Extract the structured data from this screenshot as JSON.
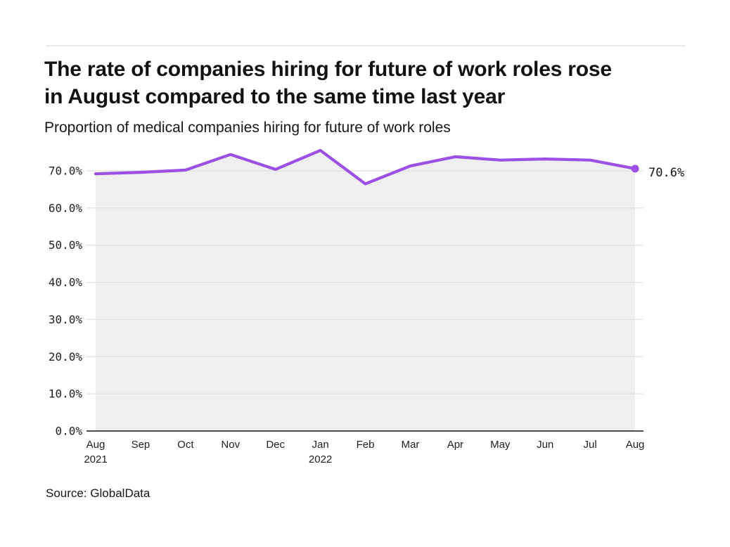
{
  "page": {
    "title_line1": "The rate of companies hiring for future of work roles rose",
    "title_line2": "in August compared to the same time last year",
    "subtitle": "Proportion of medical companies hiring for future of work roles",
    "source": "Source: GlobalData"
  },
  "chart_data": {
    "type": "line",
    "title": "Proportion of medical companies hiring for future of work roles",
    "x_tick_labels": [
      "Aug",
      "Sep",
      "Oct",
      "Nov",
      "Dec",
      "Jan",
      "Feb",
      "Mar",
      "Apr",
      "May",
      "Jun",
      "Jul",
      "Aug"
    ],
    "x_year_labels": [
      {
        "index": 0,
        "label": "2021"
      },
      {
        "index": 5,
        "label": "2022"
      }
    ],
    "series": [
      {
        "name": "Proportion of medical companies hiring for future of work roles",
        "values": [
          69.2,
          69.6,
          70.2,
          74.4,
          70.4,
          75.5,
          66.5,
          71.3,
          73.8,
          72.9,
          73.2,
          72.9,
          70.6
        ]
      }
    ],
    "end_label": "70.6%",
    "y_ticks": [
      0,
      10,
      20,
      30,
      40,
      50,
      60,
      70
    ],
    "y_tick_labels": [
      "0.0%",
      "10.0%",
      "20.0%",
      "30.0%",
      "40.0%",
      "50.0%",
      "60.0%",
      "70.0%"
    ],
    "ylim": [
      0,
      78
    ],
    "grid": true,
    "legend": false,
    "colors": {
      "line": "#9c4fe4",
      "area_fill": "#efefef",
      "grid": "#e3e3e3",
      "axis": "#4d4d4d",
      "text": "#1f1f1f"
    }
  }
}
